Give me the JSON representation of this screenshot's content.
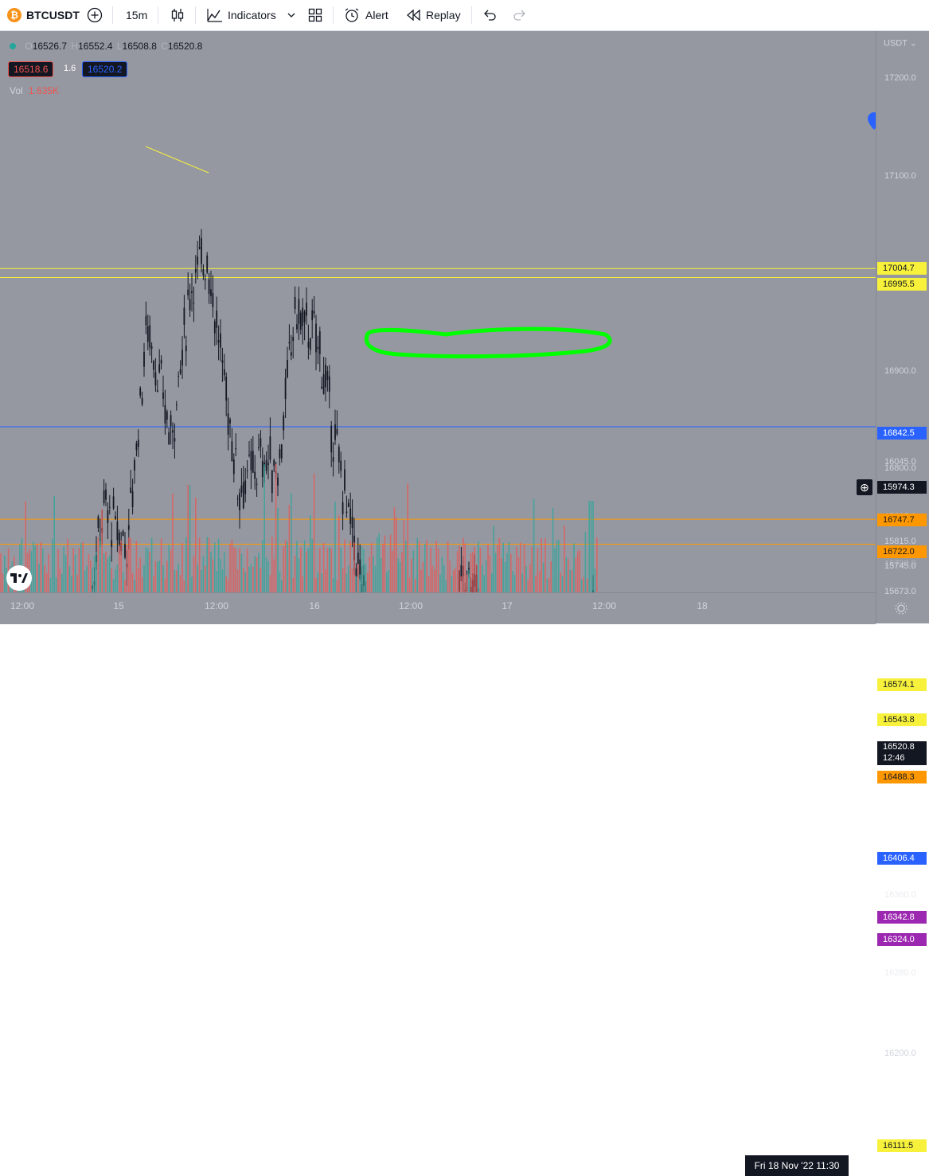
{
  "toolbar": {
    "symbol": "BTCUSDT",
    "interval": "15m",
    "indicators_label": "Indicators",
    "alert_label": "Alert",
    "replay_label": "Replay"
  },
  "legend": {
    "open_prefix": "O",
    "open": "16526.7",
    "high_prefix": "H",
    "high": "16552.4",
    "low_prefix": "L",
    "low": "16508.8",
    "close_prefix": "C",
    "close": "16520.8",
    "bid": "16518.6",
    "spread": "1.6",
    "ask": "16520.2",
    "vol_label": "Vol",
    "vol_value": "1.635K"
  },
  "price_axis": {
    "currency": "USDT",
    "ticks": [
      "17200.0",
      "17100.0",
      "16900.0",
      "16800.0",
      "16200.0",
      "16045.0",
      "15885.0",
      "15815.0",
      "15745.0",
      "15673.0"
    ],
    "partial_ticks": [
      "16700.0",
      "16360.0",
      "16280.0",
      "16100.0"
    ]
  },
  "levels": [
    {
      "price": "17004.7",
      "color": "#f7f13b",
      "text_color": "#131722",
      "style": "yellow"
    },
    {
      "price": "16995.5",
      "color": "#f7f13b",
      "text_color": "#131722",
      "style": "yellow"
    },
    {
      "price": "16842.5",
      "color": "#2962ff",
      "text_color": "#ffffff",
      "style": "blue"
    },
    {
      "price": "16747.7",
      "color": "#ff9800",
      "text_color": "#131722",
      "style": "orange"
    },
    {
      "price": "16722.0",
      "color": "#ff9800",
      "text_color": "#131722",
      "style": "orange"
    },
    {
      "price": "16574.1",
      "color": "#f7f13b",
      "text_color": "#131722",
      "style": "yellow"
    },
    {
      "price": "16543.8",
      "color": "#f7f13b",
      "text_color": "#131722",
      "style": "yellow"
    },
    {
      "price": "16488.3",
      "color": "#ff9800",
      "text_color": "#131722",
      "style": "orange"
    },
    {
      "price": "16406.4",
      "color": "#2962ff",
      "text_color": "#ffffff",
      "style": "blue"
    },
    {
      "price": "16342.8",
      "color": "#9c27b0",
      "text_color": "#ffffff",
      "style": "purple"
    },
    {
      "price": "16324.0",
      "color": "#9c27b0",
      "text_color": "#ffffff",
      "style": "purple"
    },
    {
      "price": "16111.5",
      "color": "#f7f13b",
      "text_color": "#131722",
      "style": "yellow"
    }
  ],
  "last_price": {
    "price": "16520.8",
    "countdown": "12:46"
  },
  "crosshair_price": "15974.3",
  "time_axis": {
    "ticks": [
      "12:00",
      "15",
      "12:00",
      "16",
      "12:00",
      "17",
      "12:00",
      "18"
    ],
    "current": "Fri 18 Nov '22   11:30"
  },
  "colors": {
    "background": "#9598a1",
    "candle": "#131722",
    "volume_up": "#26a69a",
    "volume_down": "#ef5350",
    "highlight": "#00ff00"
  }
}
